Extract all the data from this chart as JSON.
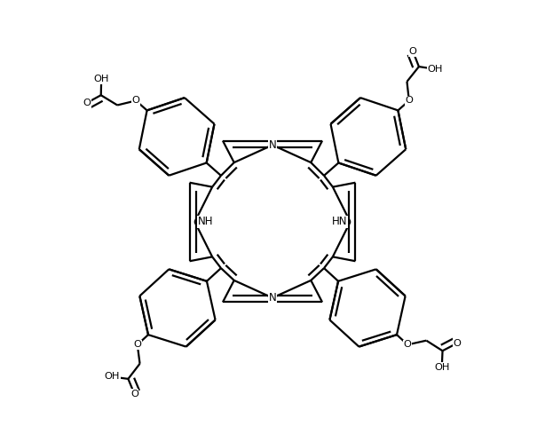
{
  "bg_color": "#ffffff",
  "line_color": "#000000",
  "lw": 1.6,
  "figsize": [
    6.14,
    4.98
  ],
  "dpi": 100,
  "xlim": [
    -1.0,
    1.0
  ],
  "ylim": [
    -0.82,
    0.82
  ]
}
